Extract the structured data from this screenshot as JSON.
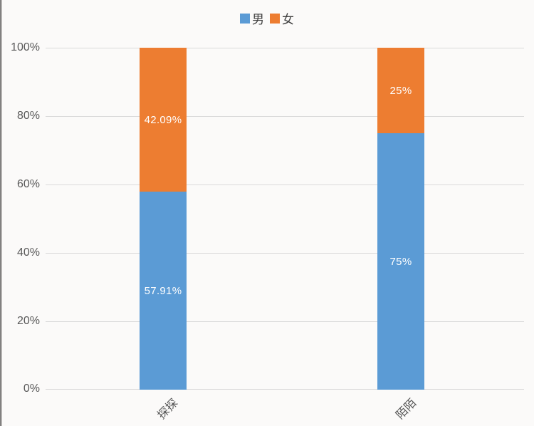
{
  "page": {
    "background": "#fbfaf9"
  },
  "legend": {
    "position": "top-center",
    "items": [
      {
        "label": "男",
        "color": "#5b9bd5"
      },
      {
        "label": "女",
        "color": "#ed7d31"
      }
    ]
  },
  "chart_data": {
    "type": "bar",
    "subtype": "stacked-100-percent-column",
    "title": "",
    "xlabel": "",
    "ylabel": "",
    "categories": [
      "探探",
      "陌陌"
    ],
    "series": [
      {
        "name": "男",
        "color": "#5b9bd5",
        "values": [
          57.91,
          75
        ],
        "labels": [
          "57.91%",
          "75%"
        ]
      },
      {
        "name": "女",
        "color": "#ed7d31",
        "values": [
          42.09,
          25
        ],
        "labels": [
          "42.09%",
          "25%"
        ]
      }
    ],
    "ylim": [
      0,
      100
    ],
    "yticks_desc": [
      "100%",
      "80%",
      "60%",
      "40%",
      "20%",
      "0%"
    ],
    "grid": "horizontal",
    "gridline_color": "#dadada",
    "axis_text_color": "#595959",
    "data_label_color": "#ffffff",
    "legend_position": "top",
    "x_tick_rotation_deg": -45
  }
}
